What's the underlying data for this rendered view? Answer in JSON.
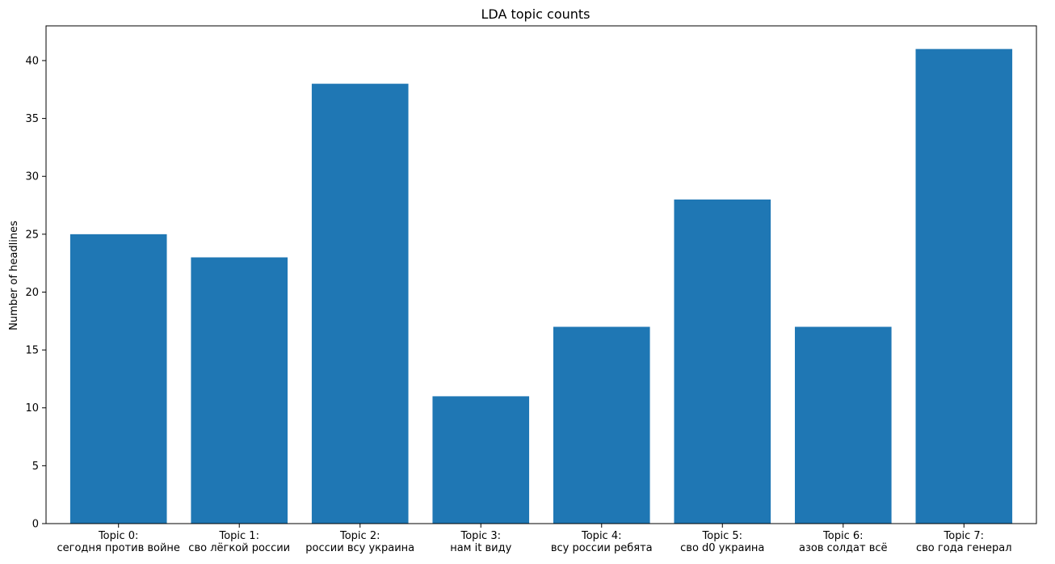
{
  "chart_data": {
    "type": "bar",
    "title": "LDA topic counts",
    "xlabel": "",
    "ylabel": "Number of headlines",
    "ylim": [
      0,
      43
    ],
    "yticks": [
      0,
      5,
      10,
      15,
      20,
      25,
      30,
      35,
      40
    ],
    "grid": false,
    "bar_color": "#1f77b4",
    "categories": [
      [
        "Topic 0:",
        "сегодня против войне"
      ],
      [
        "Topic 1:",
        "сво лёгкой россии"
      ],
      [
        "Topic 2:",
        "россии всу украина"
      ],
      [
        "Topic 3:",
        "нам it виду"
      ],
      [
        "Topic 4:",
        "всу россии ребята"
      ],
      [
        "Topic 5:",
        "сво d0 украина"
      ],
      [
        "Topic 6:",
        "азов солдат всё"
      ],
      [
        "Topic 7:",
        "сво года генерал"
      ]
    ],
    "values": [
      25,
      23,
      38,
      11,
      17,
      28,
      17,
      41
    ]
  }
}
